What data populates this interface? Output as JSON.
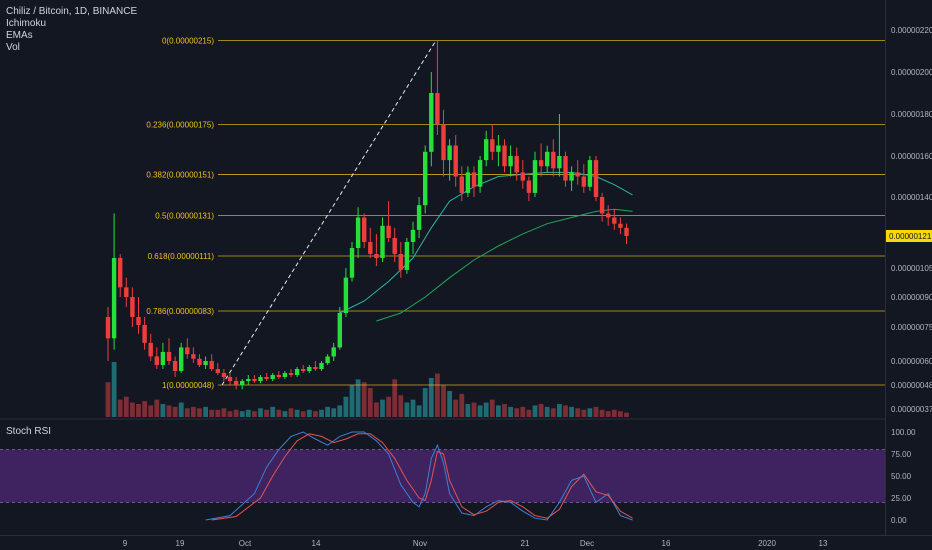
{
  "header": {
    "symbol": "Chiliz / Bitcoin, 1D, BINANCE",
    "indicators": [
      "Ichimoku",
      "EMAs",
      "Vol"
    ]
  },
  "rsi_panel": {
    "title": "Stoch RSI"
  },
  "colors": {
    "background": "#131722",
    "up": "#26e03a",
    "down": "#ef3d3d",
    "fib": "#f0c419",
    "ema_fast": "#2bb6a7",
    "ema_slow": "#22a858",
    "rsi_band": "#5b2b8a",
    "rsi_k": "#3f7fd6",
    "rsi_d": "#e0554f",
    "price_tag": "#f5d90a"
  },
  "chart_data": [
    {
      "type": "candlestick",
      "x_ticks": [
        "9",
        "19",
        "Oct",
        "14",
        "Nov",
        "21",
        "Dec",
        "16",
        "2020",
        "13"
      ],
      "y_ticks": [
        "0.00000220",
        "0.00000200",
        "0.00000180",
        "0.00000160",
        "0.00000140",
        "0.00000121",
        "0.00000105",
        "0.00000090",
        "0.00000075",
        "0.00000060",
        "0.00000048",
        "0.00000037"
      ],
      "last_price": "0.00000121",
      "fib_levels": [
        {
          "label": "0(0.00000215)",
          "value": 2.15e-06
        },
        {
          "label": "0.236(0.00000175)",
          "value": 1.75e-06
        },
        {
          "label": "0.382(0.00000151)",
          "value": 1.51e-06
        },
        {
          "label": "0.5(0.00000131)",
          "value": 1.31e-06
        },
        {
          "label": "0.618(0.00000111)",
          "value": 1.11e-06
        },
        {
          "label": "0.786(0.00000083)",
          "value": 8.3e-07
        },
        {
          "label": "1(0.00000048)",
          "value": 4.8e-07
        }
      ],
      "trend_line": {
        "from_value": 4.8e-07,
        "to_value": 2.15e-06
      },
      "candles": [
        [
          8e-07,
          8.5e-07,
          6e-07,
          7e-07
        ],
        [
          7e-07,
          1.32e-06,
          6.5e-07,
          1.1e-06
        ],
        [
          1.1e-06,
          1.12e-06,
          9e-07,
          9.5e-07
        ],
        [
          9.5e-07,
          1e-06,
          8.5e-07,
          9e-07
        ],
        [
          9e-07,
          9.5e-07,
          7.5e-07,
          8e-07
        ],
        [
          8e-07,
          9e-07,
          7.2e-07,
          7.6e-07
        ],
        [
          7.6e-07,
          8e-07,
          6.5e-07,
          6.8e-07
        ],
        [
          6.8e-07,
          7.2e-07,
          6e-07,
          6.2e-07
        ],
        [
          6.2e-07,
          6.6e-07,
          5.6e-07,
          5.8e-07
        ],
        [
          5.8e-07,
          6.8e-07,
          5.6e-07,
          6.4e-07
        ],
        [
          6.4e-07,
          7e-07,
          5.8e-07,
          6e-07
        ],
        [
          6e-07,
          6.2e-07,
          5.2e-07,
          5.5e-07
        ],
        [
          5.5e-07,
          6.8e-07,
          5.4e-07,
          6.6e-07
        ],
        [
          6.6e-07,
          7e-07,
          6.1e-07,
          6.3e-07
        ],
        [
          6.3e-07,
          6.6e-07,
          5.9e-07,
          6.1e-07
        ],
        [
          6.1e-07,
          6.3e-07,
          5.7e-07,
          5.8e-07
        ],
        [
          5.8e-07,
          6.2e-07,
          5.6e-07,
          6e-07
        ],
        [
          6e-07,
          6.3e-07,
          5.5e-07,
          5.6e-07
        ],
        [
          5.6e-07,
          5.9e-07,
          5.3e-07,
          5.4e-07
        ],
        [
          5.4e-07,
          5.6e-07,
          5e-07,
          5.2e-07
        ],
        [
          5.2e-07,
          5.4e-07,
          4.8e-07,
          5e-07
        ],
        [
          5e-07,
          5.2e-07,
          4.6e-07,
          4.8e-07
        ],
        [
          4.8e-07,
          5.1e-07,
          4.6e-07,
          5e-07
        ],
        [
          5e-07,
          5.3e-07,
          4.8e-07,
          5.1e-07
        ],
        [
          5.1e-07,
          5.3e-07,
          4.9e-07,
          5e-07
        ],
        [
          5e-07,
          5.3e-07,
          4.9e-07,
          5.2e-07
        ],
        [
          5.2e-07,
          5.4e-07,
          5e-07,
          5.1e-07
        ],
        [
          5.1e-07,
          5.4e-07,
          5e-07,
          5.3e-07
        ],
        [
          5.3e-07,
          5.5e-07,
          5.1e-07,
          5.2e-07
        ],
        [
          5.2e-07,
          5.5e-07,
          5.1e-07,
          5.4e-07
        ],
        [
          5.4e-07,
          5.6e-07,
          5.2e-07,
          5.3e-07
        ],
        [
          5.3e-07,
          5.7e-07,
          5.2e-07,
          5.6e-07
        ],
        [
          5.6e-07,
          5.8e-07,
          5.4e-07,
          5.5e-07
        ],
        [
          5.5e-07,
          5.8e-07,
          5.4e-07,
          5.7e-07
        ],
        [
          5.7e-07,
          6e-07,
          5.5e-07,
          5.6e-07
        ],
        [
          5.6e-07,
          6e-07,
          5.5e-07,
          5.9e-07
        ],
        [
          5.9e-07,
          6.3e-07,
          5.8e-07,
          6.2e-07
        ],
        [
          6.2e-07,
          6.8e-07,
          6e-07,
          6.6e-07
        ],
        [
          6.6e-07,
          8.5e-07,
          6.5e-07,
          8.2e-07
        ],
        [
          8.2e-07,
          1.05e-06,
          8e-07,
          1e-06
        ],
        [
          1e-06,
          1.18e-06,
          9.8e-07,
          1.15e-06
        ],
        [
          1.15e-06,
          1.35e-06,
          1.1e-06,
          1.3e-06
        ],
        [
          1.3e-06,
          1.32e-06,
          1.15e-06,
          1.18e-06
        ],
        [
          1.18e-06,
          1.25e-06,
          1.1e-06,
          1.12e-06
        ],
        [
          1.12e-06,
          1.22e-06,
          1.06e-06,
          1.1e-06
        ],
        [
          1.1e-06,
          1.3e-06,
          1.08e-06,
          1.26e-06
        ],
        [
          1.26e-06,
          1.38e-06,
          1.18e-06,
          1.2e-06
        ],
        [
          1.2e-06,
          1.25e-06,
          1.08e-06,
          1.12e-06
        ],
        [
          1.12e-06,
          1.18e-06,
          1e-06,
          1.04e-06
        ],
        [
          1.04e-06,
          1.2e-06,
          1.02e-06,
          1.18e-06
        ],
        [
          1.18e-06,
          1.28e-06,
          1.12e-06,
          1.24e-06
        ],
        [
          1.24e-06,
          1.4e-06,
          1.2e-06,
          1.36e-06
        ],
        [
          1.36e-06,
          1.65e-06,
          1.32e-06,
          1.62e-06
        ],
        [
          1.62e-06,
          2e-06,
          1.55e-06,
          1.9e-06
        ],
        [
          1.9e-06,
          2.15e-06,
          1.7e-06,
          1.75e-06
        ],
        [
          1.75e-06,
          1.82e-06,
          1.5e-06,
          1.58e-06
        ],
        [
          1.58e-06,
          1.68e-06,
          1.48e-06,
          1.65e-06
        ],
        [
          1.65e-06,
          1.7e-06,
          1.45e-06,
          1.5e-06
        ],
        [
          1.5e-06,
          1.55e-06,
          1.38e-06,
          1.42e-06
        ],
        [
          1.42e-06,
          1.55e-06,
          1.4e-06,
          1.52e-06
        ],
        [
          1.52e-06,
          1.55e-06,
          1.4e-06,
          1.45e-06
        ],
        [
          1.45e-06,
          1.6e-06,
          1.42e-06,
          1.58e-06
        ],
        [
          1.58e-06,
          1.72e-06,
          1.55e-06,
          1.68e-06
        ],
        [
          1.68e-06,
          1.75e-06,
          1.58e-06,
          1.62e-06
        ],
        [
          1.62e-06,
          1.7e-06,
          1.55e-06,
          1.65e-06
        ],
        [
          1.65e-06,
          1.68e-06,
          1.52e-06,
          1.55e-06
        ],
        [
          1.55e-06,
          1.65e-06,
          1.5e-06,
          1.6e-06
        ],
        [
          1.6e-06,
          1.64e-06,
          1.48e-06,
          1.52e-06
        ],
        [
          1.52e-06,
          1.58e-06,
          1.44e-06,
          1.48e-06
        ],
        [
          1.48e-06,
          1.5e-06,
          1.38e-06,
          1.42e-06
        ],
        [
          1.42e-06,
          1.62e-06,
          1.4e-06,
          1.58e-06
        ],
        [
          1.58e-06,
          1.66e-06,
          1.5e-06,
          1.55e-06
        ],
        [
          1.55e-06,
          1.65e-06,
          1.52e-06,
          1.62e-06
        ],
        [
          1.62e-06,
          1.68e-06,
          1.5e-06,
          1.54e-06
        ],
        [
          1.54e-06,
          1.8e-06,
          1.5e-06,
          1.6e-06
        ],
        [
          1.6e-06,
          1.62e-06,
          1.45e-06,
          1.48e-06
        ],
        [
          1.48e-06,
          1.55e-06,
          1.43e-06,
          1.52e-06
        ],
        [
          1.52e-06,
          1.58e-06,
          1.46e-06,
          1.5e-06
        ],
        [
          1.5e-06,
          1.56e-06,
          1.42e-06,
          1.45e-06
        ],
        [
          1.45e-06,
          1.6e-06,
          1.43e-06,
          1.58e-06
        ],
        [
          1.58e-06,
          1.6e-06,
          1.38e-06,
          1.4e-06
        ],
        [
          1.4e-06,
          1.42e-06,
          1.28e-06,
          1.32e-06
        ],
        [
          1.32e-06,
          1.36e-06,
          1.26e-06,
          1.3e-06
        ],
        [
          1.3e-06,
          1.34e-06,
          1.24e-06,
          1.27e-06
        ],
        [
          1.27e-06,
          1.3e-06,
          1.22e-06,
          1.25e-06
        ],
        [
          1.25e-06,
          1.27e-06,
          1.17e-06,
          1.21e-06
        ]
      ],
      "volume": [
        24,
        38,
        12,
        14,
        10,
        9,
        11,
        8,
        12,
        9,
        8,
        7,
        10,
        6,
        7,
        6,
        7,
        5,
        5,
        6,
        4,
        5,
        4,
        5,
        4,
        6,
        5,
        7,
        5,
        4,
        6,
        5,
        4,
        5,
        4,
        5,
        7,
        6,
        8,
        14,
        22,
        26,
        24,
        20,
        10,
        12,
        14,
        26,
        15,
        10,
        12,
        8,
        20,
        27,
        30,
        22,
        18,
        12,
        16,
        9,
        10,
        8,
        10,
        12,
        8,
        9,
        7,
        6,
        7,
        5,
        8,
        9,
        7,
        6,
        9,
        8,
        7,
        6,
        5,
        6,
        7,
        5,
        4,
        5,
        4,
        3
      ],
      "ema_fast": [
        [
          38,
          8.2e-07
        ],
        [
          42,
          8.8e-07
        ],
        [
          46,
          9.8e-07
        ],
        [
          50,
          1.1e-06
        ],
        [
          53,
          1.25e-06
        ],
        [
          56,
          1.38e-06
        ],
        [
          60,
          1.45e-06
        ],
        [
          64,
          1.5e-06
        ],
        [
          68,
          1.51e-06
        ],
        [
          72,
          1.52e-06
        ],
        [
          76,
          1.52e-06
        ],
        [
          80,
          1.5e-06
        ],
        [
          83,
          1.46e-06
        ],
        [
          86,
          1.41e-06
        ]
      ],
      "ema_slow": [
        [
          44,
          7.8e-07
        ],
        [
          48,
          8.2e-07
        ],
        [
          52,
          9e-07
        ],
        [
          56,
          1e-06
        ],
        [
          60,
          1.09e-06
        ],
        [
          64,
          1.16e-06
        ],
        [
          68,
          1.22e-06
        ],
        [
          72,
          1.27e-06
        ],
        [
          76,
          1.3e-06
        ],
        [
          80,
          1.33e-06
        ],
        [
          83,
          1.34e-06
        ],
        [
          86,
          1.33e-06
        ]
      ]
    },
    {
      "type": "line",
      "y_ticks": [
        "100.00",
        "75.00",
        "50.00",
        "25.00",
        "0.00"
      ],
      "band": [
        20,
        80
      ],
      "ylim": [
        0,
        100
      ],
      "k": [
        [
          16,
          0
        ],
        [
          20,
          5
        ],
        [
          24,
          30
        ],
        [
          26,
          60
        ],
        [
          28,
          80
        ],
        [
          30,
          95
        ],
        [
          32,
          100
        ],
        [
          34,
          92
        ],
        [
          36,
          85
        ],
        [
          38,
          95
        ],
        [
          40,
          100
        ],
        [
          42,
          100
        ],
        [
          44,
          90
        ],
        [
          46,
          75
        ],
        [
          48,
          40
        ],
        [
          50,
          20
        ],
        [
          51,
          15
        ],
        [
          52,
          30
        ],
        [
          53,
          70
        ],
        [
          54,
          85
        ],
        [
          55,
          65
        ],
        [
          56,
          30
        ],
        [
          58,
          8
        ],
        [
          60,
          5
        ],
        [
          62,
          15
        ],
        [
          64,
          22
        ],
        [
          66,
          20
        ],
        [
          68,
          10
        ],
        [
          70,
          2
        ],
        [
          72,
          0
        ],
        [
          74,
          20
        ],
        [
          76,
          45
        ],
        [
          78,
          50
        ],
        [
          80,
          20
        ],
        [
          82,
          30
        ],
        [
          84,
          5
        ],
        [
          86,
          0
        ]
      ],
      "d": [
        [
          17,
          0
        ],
        [
          21,
          4
        ],
        [
          25,
          25
        ],
        [
          27,
          50
        ],
        [
          29,
          72
        ],
        [
          31,
          90
        ],
        [
          33,
          98
        ],
        [
          35,
          95
        ],
        [
          37,
          88
        ],
        [
          39,
          92
        ],
        [
          41,
          98
        ],
        [
          43,
          98
        ],
        [
          45,
          88
        ],
        [
          47,
          70
        ],
        [
          49,
          45
        ],
        [
          51,
          25
        ],
        [
          52,
          22
        ],
        [
          53,
          45
        ],
        [
          54,
          78
        ],
        [
          55,
          75
        ],
        [
          56,
          45
        ],
        [
          58,
          15
        ],
        [
          60,
          6
        ],
        [
          62,
          10
        ],
        [
          64,
          20
        ],
        [
          66,
          22
        ],
        [
          68,
          15
        ],
        [
          70,
          5
        ],
        [
          72,
          2
        ],
        [
          74,
          12
        ],
        [
          76,
          38
        ],
        [
          78,
          52
        ],
        [
          80,
          32
        ],
        [
          82,
          28
        ],
        [
          84,
          10
        ],
        [
          86,
          2
        ]
      ]
    }
  ]
}
